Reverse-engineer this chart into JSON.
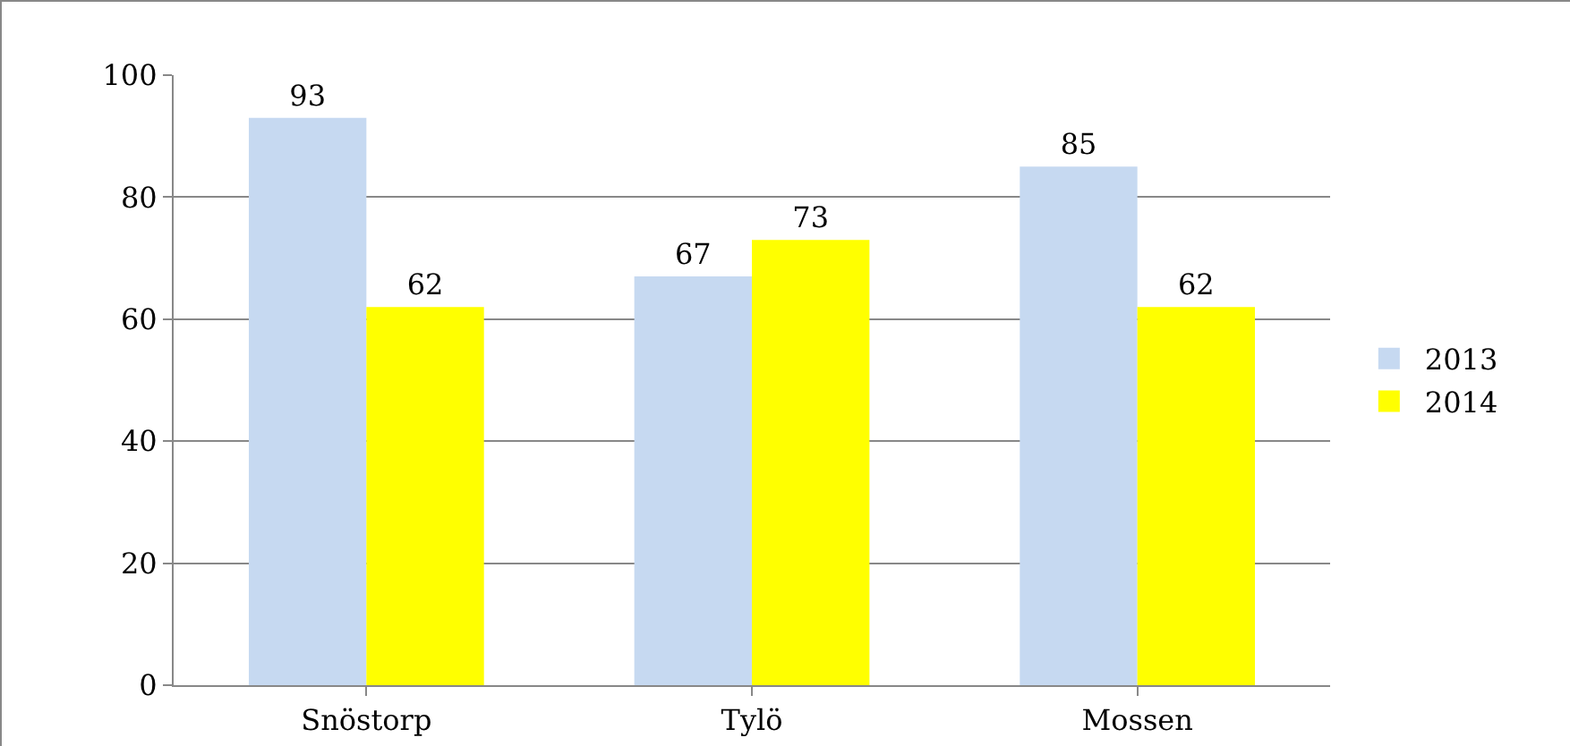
{
  "chart_data": {
    "type": "bar",
    "categories": [
      "Snöstorp",
      "Tylö",
      "Mossen"
    ],
    "series": [
      {
        "name": "2013",
        "color": "#c6d9f1",
        "values": [
          93,
          67,
          85
        ]
      },
      {
        "name": "2014",
        "color": "#ffff00",
        "values": [
          62,
          73,
          62
        ]
      }
    ],
    "ylim": [
      0,
      100
    ],
    "yticks": [
      0,
      20,
      40,
      60,
      80,
      100
    ],
    "grid": "y",
    "legend": "right",
    "data_labels": true
  }
}
